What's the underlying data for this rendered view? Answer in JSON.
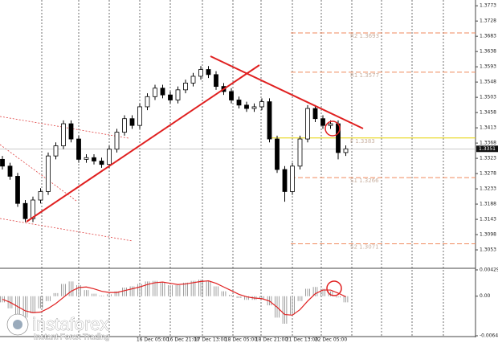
{
  "chart_data": [
    {
      "type": "candlestick",
      "open": [
        1.332,
        1.33,
        1.327,
        1.319,
        1.3145,
        1.32,
        1.3225,
        1.333,
        1.336,
        1.3425,
        1.338,
        1.332,
        1.3325,
        1.3315,
        1.3305,
        1.335,
        1.34,
        1.344,
        1.342,
        1.3475,
        1.3505,
        1.353,
        1.351,
        1.3495,
        1.3525,
        1.3545,
        1.3565,
        1.3585,
        1.357,
        1.3535,
        1.352,
        1.3495,
        1.348,
        1.347,
        1.3475,
        1.349,
        1.338,
        1.329,
        1.3225,
        1.33,
        1.338,
        1.347,
        1.344,
        1.342,
        1.3425,
        1.334
      ],
      "high": [
        1.333,
        1.331,
        1.328,
        1.32,
        1.321,
        1.3235,
        1.334,
        1.337,
        1.3435,
        1.3435,
        1.339,
        1.3335,
        1.3335,
        1.3325,
        1.336,
        1.341,
        1.345,
        1.345,
        1.3485,
        1.3515,
        1.354,
        1.354,
        1.352,
        1.3535,
        1.3555,
        1.3575,
        1.3595,
        1.3595,
        1.358,
        1.3545,
        1.353,
        1.3505,
        1.349,
        1.3485,
        1.35,
        1.35,
        1.339,
        1.33,
        1.331,
        1.339,
        1.348,
        1.348,
        1.345,
        1.3435,
        1.3435,
        1.3361
      ],
      "low": [
        1.329,
        1.326,
        1.318,
        1.3135,
        1.3135,
        1.319,
        1.3215,
        1.332,
        1.335,
        1.337,
        1.331,
        1.331,
        1.3305,
        1.3295,
        1.3295,
        1.334,
        1.339,
        1.341,
        1.341,
        1.3465,
        1.3495,
        1.35,
        1.3485,
        1.3485,
        1.3515,
        1.3535,
        1.3555,
        1.356,
        1.3525,
        1.351,
        1.3485,
        1.347,
        1.346,
        1.346,
        1.3465,
        1.337,
        1.328,
        1.3195,
        1.3215,
        1.329,
        1.337,
        1.343,
        1.341,
        1.341,
        1.332,
        1.333
      ],
      "close": [
        1.33,
        1.327,
        1.319,
        1.3145,
        1.32,
        1.3225,
        1.333,
        1.336,
        1.3425,
        1.338,
        1.332,
        1.3325,
        1.3315,
        1.3305,
        1.335,
        1.34,
        1.344,
        1.342,
        1.3475,
        1.3505,
        1.353,
        1.351,
        1.3495,
        1.3525,
        1.3545,
        1.3565,
        1.3585,
        1.357,
        1.3535,
        1.352,
        1.3495,
        1.348,
        1.347,
        1.3475,
        1.349,
        1.338,
        1.329,
        1.3225,
        1.33,
        1.338,
        1.347,
        1.344,
        1.342,
        1.3425,
        1.334,
        1.3351
      ],
      "ylim": [
        1.3001,
        1.379
      ],
      "yticks": [
        1.3773,
        1.3728,
        1.3683,
        1.3638,
        1.3593,
        1.3548,
        1.3503,
        1.3458,
        1.3413,
        1.3368,
        1.3323,
        1.3278,
        1.3233,
        1.3188,
        1.3143,
        1.3098,
        1.3053
      ],
      "levels": [
        {
          "value": 1.3693,
          "label": "R2 1.3693",
          "color": "#f08a5d"
        },
        {
          "value": 1.3577,
          "label": "R1 1.3577",
          "color": "#f08a5d"
        },
        {
          "value": 1.3383,
          "label": "F 1.3383",
          "color": "#e6d200"
        },
        {
          "value": 1.3266,
          "label": "S1 1.3266",
          "color": "#f08a5d"
        },
        {
          "value": 1.3071,
          "label": "S2 1.3071",
          "color": "#f08a5d"
        }
      ],
      "x_labels": [
        "16 Dec 05:00",
        "16 Dec 21:00",
        "17 Dec 13:00",
        "18 Dec 05:00",
        "18 Dec 21:00",
        "21 Dec 13:00",
        "22 Dec 05:00"
      ]
    },
    {
      "type": "oscillator",
      "values": [
        -0.001,
        -0.002,
        -0.003,
        -0.0035,
        -0.0028,
        -0.002,
        -0.0008,
        0.0005,
        0.002,
        0.0024,
        0.0018,
        0.001,
        0.0004,
        0.0001,
        0.0003,
        0.0008,
        0.0014,
        0.0016,
        0.002,
        0.0024,
        0.0025,
        0.0022,
        0.0018,
        0.0018,
        0.0022,
        0.0025,
        0.0027,
        0.0024,
        0.0016,
        0.0008,
        0.0002,
        -0.0003,
        -0.0006,
        -0.0006,
        -0.0004,
        -0.0015,
        -0.0035,
        -0.0045,
        -0.003,
        -0.0008,
        0.0012,
        0.0015,
        0.0012,
        0.0008,
        -0.0002,
        -0.001
      ],
      "signal": [
        -0.0005,
        -0.001,
        -0.0017,
        -0.0024,
        -0.0027,
        -0.0026,
        -0.002,
        -0.0012,
        -0.0002,
        0.0008,
        0.0014,
        0.0015,
        0.0012,
        0.0008,
        0.0006,
        0.0006,
        0.0009,
        0.0012,
        0.0015,
        0.0019,
        0.0022,
        0.0023,
        0.0021,
        0.0019,
        0.002,
        0.0022,
        0.0024,
        0.0025,
        0.0021,
        0.0015,
        0.0009,
        0.0003,
        -0.0001,
        -0.0003,
        -0.0004,
        -0.0008,
        -0.0018,
        -0.003,
        -0.0031,
        -0.0022,
        -0.0008,
        0.0004,
        0.001,
        0.001,
        0.0005,
        -0.0001
      ],
      "signal_color": "#e02020",
      "ylim": [
        -0.00647,
        0.00429
      ],
      "yticks": [
        0.00429,
        {
          "value": 0,
          "label": "0.00"
        },
        -0.00647
      ]
    }
  ],
  "brand": {
    "name": "instaforex",
    "tagline": "Instant Forex Trading"
  }
}
